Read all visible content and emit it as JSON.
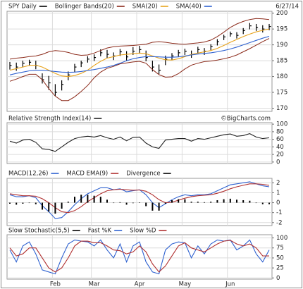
{
  "chart_data": [
    {
      "type": "candlestick",
      "date": "6/27/14",
      "ylim": [
        169,
        200.6
      ],
      "yticks": [
        170,
        175,
        180,
        185,
        190,
        195,
        200
      ],
      "grid": true,
      "series": [
        {
          "name": "SPY Daily",
          "color": "#000000",
          "high": [
            184.6,
            184.4,
            185.0,
            185.3,
            185.0,
            181.0,
            180.2,
            177.6,
            178.8,
            181.6,
            184.0,
            185.0,
            186.4,
            187.0,
            188.6,
            188.4,
            187.6,
            188.7,
            188.0,
            189.3,
            189.7,
            188.2,
            185.0,
            183.8,
            186.6,
            187.4,
            188.4,
            188.8,
            188.2,
            189.4,
            189.0,
            190.2,
            191.8,
            193.2,
            194.2,
            194.0,
            195.3,
            196.9,
            196.6,
            196.2,
            196.6
          ],
          "low": [
            182.2,
            181.8,
            182.9,
            183.4,
            182.3,
            177.8,
            175.8,
            173.9,
            175.6,
            178.8,
            181.4,
            183.0,
            184.4,
            184.9,
            186.4,
            185.9,
            185.2,
            186.5,
            185.0,
            186.8,
            187.2,
            184.8,
            181.6,
            180.8,
            183.6,
            185.2,
            186.3,
            186.8,
            185.9,
            187.2,
            186.8,
            188.3,
            189.8,
            191.5,
            192.6,
            192.0,
            193.4,
            194.9,
            194.4,
            193.9,
            194.6
          ],
          "close": [
            183.5,
            183.0,
            184.2,
            184.5,
            183.5,
            179.0,
            178.0,
            175.0,
            177.5,
            180.5,
            183.0,
            184.3,
            185.5,
            186.0,
            187.5,
            187.0,
            186.5,
            187.8,
            186.2,
            188.0,
            188.5,
            186.0,
            183.0,
            182.0,
            185.5,
            186.5,
            187.5,
            188.0,
            187.0,
            188.5,
            188.0,
            189.5,
            191.0,
            192.5,
            193.5,
            193.0,
            194.5,
            196.0,
            195.5,
            195.0,
            195.8
          ]
        },
        {
          "name": "Bollinger Bands(20)",
          "color": "#8b2a1a",
          "upper": [
            185.5,
            185.8,
            186.0,
            186.3,
            186.5,
            187.0,
            187.8,
            188.2,
            188.0,
            187.6,
            187.0,
            186.7,
            186.8,
            187.4,
            188.2,
            189.0,
            189.4,
            189.6,
            189.7,
            189.8,
            190.0,
            190.2,
            190.8,
            191.0,
            190.8,
            190.5,
            190.3,
            190.2,
            190.4,
            190.6,
            190.9,
            191.5,
            192.6,
            194.0,
            195.5,
            196.6,
            197.4,
            198.0,
            198.3,
            198.2,
            198.0
          ],
          "lower": [
            178.5,
            179.2,
            180.0,
            180.7,
            180.7,
            179.0,
            176.2,
            173.8,
            172.4,
            172.4,
            173.6,
            175.3,
            177.2,
            179.6,
            181.4,
            182.6,
            183.2,
            184.0,
            184.3,
            184.6,
            184.8,
            184.2,
            182.2,
            180.6,
            179.8,
            179.9,
            180.9,
            182.4,
            183.6,
            184.2,
            184.7,
            184.9,
            185.2,
            185.6,
            186.1,
            186.8,
            187.8,
            188.8,
            189.9,
            191.0,
            192.0
          ]
        },
        {
          "name": "SMA(20)",
          "color": "#e8a31c",
          "values": [
            182.0,
            182.5,
            183.0,
            183.5,
            183.6,
            183.0,
            182.0,
            181.0,
            180.2,
            180.0,
            180.3,
            181.0,
            182.0,
            183.5,
            184.8,
            185.8,
            186.3,
            186.8,
            187.0,
            187.2,
            187.4,
            187.2,
            186.5,
            185.8,
            185.3,
            185.2,
            185.6,
            186.3,
            187.0,
            187.4,
            187.8,
            188.2,
            188.9,
            189.8,
            190.8,
            191.7,
            192.6,
            193.4,
            194.1,
            194.6,
            195.0
          ]
        },
        {
          "name": "SMA(40)",
          "color": "#2f62d0",
          "values": [
            180.5,
            181.0,
            181.4,
            181.8,
            182.0,
            182.0,
            181.8,
            181.6,
            181.4,
            181.3,
            181.4,
            181.6,
            181.9,
            182.2,
            182.6,
            183.0,
            183.5,
            184.2,
            185.0,
            185.6,
            186.0,
            186.3,
            186.3,
            186.2,
            186.1,
            186.1,
            186.2,
            186.5,
            186.8,
            187.1,
            187.3,
            187.5,
            187.8,
            188.2,
            188.7,
            189.3,
            190.0,
            190.7,
            191.4,
            192.1,
            192.7
          ]
        }
      ]
    },
    {
      "type": "line",
      "source": "©BigCharts.com",
      "ylim": [
        -4,
        104
      ],
      "yticks": [
        0,
        20,
        40,
        60,
        80,
        100
      ],
      "grid": true,
      "series": [
        {
          "name": "Relative Strength Index(14)",
          "color": "#222222",
          "values": [
            55,
            50,
            58,
            60,
            52,
            35,
            33,
            28,
            40,
            52,
            62,
            66,
            68,
            66,
            70,
            64,
            60,
            66,
            56,
            65,
            66,
            50,
            40,
            36,
            58,
            60,
            62,
            62,
            55,
            62,
            60,
            64,
            68,
            72,
            74,
            68,
            70,
            75,
            66,
            62,
            64
          ]
        }
      ]
    },
    {
      "type": "line",
      "ylim": [
        -2.3,
        2.45
      ],
      "yticks": [
        -2,
        -1,
        0,
        1,
        2
      ],
      "grid": true,
      "series": [
        {
          "name": "MACD(12,26)",
          "color": "#2f62d0",
          "values": [
            0.8,
            0.6,
            0.6,
            0.7,
            0.5,
            -0.3,
            -0.9,
            -1.6,
            -1.5,
            -0.9,
            -0.2,
            0.4,
            0.9,
            1.2,
            1.5,
            1.5,
            1.3,
            1.4,
            1.1,
            1.2,
            1.3,
            0.8,
            0.0,
            -0.5,
            -0.1,
            0.3,
            0.6,
            0.8,
            0.7,
            0.8,
            0.8,
            0.9,
            1.2,
            1.5,
            1.8,
            1.9,
            2.0,
            2.1,
            1.9,
            1.7,
            1.6
          ]
        },
        {
          "name": "MACD EMA(9)",
          "color": "#b03030",
          "values": [
            0.9,
            0.8,
            0.7,
            0.7,
            0.65,
            0.4,
            0.0,
            -0.5,
            -0.9,
            -1.0,
            -0.8,
            -0.4,
            0.1,
            0.5,
            0.9,
            1.2,
            1.3,
            1.35,
            1.3,
            1.25,
            1.28,
            1.15,
            0.8,
            0.3,
            0.0,
            0.05,
            0.25,
            0.45,
            0.6,
            0.7,
            0.75,
            0.8,
            0.95,
            1.15,
            1.4,
            1.6,
            1.75,
            1.9,
            1.9,
            1.85,
            1.75
          ]
        },
        {
          "name": "Divergence",
          "color": "#000000",
          "kind": "bar",
          "values": [
            -0.1,
            -0.2,
            -0.1,
            0.0,
            -0.15,
            -0.7,
            -0.9,
            -1.1,
            -0.6,
            0.1,
            0.6,
            0.8,
            0.8,
            0.7,
            0.6,
            0.3,
            0.0,
            0.05,
            -0.2,
            -0.05,
            0.02,
            -0.35,
            -0.8,
            -0.8,
            -0.1,
            0.25,
            0.35,
            0.35,
            0.1,
            0.1,
            0.05,
            0.1,
            0.25,
            0.35,
            0.4,
            0.3,
            0.25,
            0.2,
            0.0,
            -0.15,
            -0.15
          ]
        }
      ]
    },
    {
      "type": "line",
      "ylim": [
        -3,
        108
      ],
      "yticks": [
        0,
        25,
        50,
        75,
        100
      ],
      "grid": true,
      "categories": [
        null,
        null,
        null,
        null,
        null,
        null,
        null,
        "Feb",
        null,
        null,
        null,
        null,
        null,
        "Mar",
        null,
        null,
        null,
        null,
        null,
        null,
        "Apr",
        null,
        null,
        null,
        null,
        null,
        null,
        "May",
        null,
        null,
        null,
        null,
        null,
        null,
        "Jun",
        null,
        null,
        null,
        null,
        null,
        null
      ],
      "series": [
        {
          "name": "Slow Stochastic(5,5)",
          "color": "#000000",
          "values": null
        },
        {
          "name": "Fast %K",
          "color": "#2f62d0",
          "values": [
            70,
            40,
            80,
            90,
            60,
            20,
            15,
            10,
            50,
            85,
            95,
            92,
            90,
            80,
            95,
            70,
            50,
            85,
            40,
            80,
            90,
            40,
            15,
            10,
            70,
            85,
            90,
            88,
            50,
            80,
            60,
            85,
            95,
            92,
            95,
            70,
            80,
            95,
            60,
            40,
            70
          ]
        },
        {
          "name": "Slow %D",
          "color": "#b03030",
          "values": [
            75,
            55,
            60,
            75,
            75,
            50,
            25,
            15,
            25,
            50,
            80,
            92,
            92,
            88,
            88,
            80,
            70,
            68,
            60,
            65,
            80,
            65,
            35,
            15,
            30,
            55,
            80,
            88,
            75,
            70,
            65,
            75,
            85,
            92,
            94,
            85,
            80,
            85,
            75,
            55,
            55
          ]
        }
      ]
    }
  ]
}
